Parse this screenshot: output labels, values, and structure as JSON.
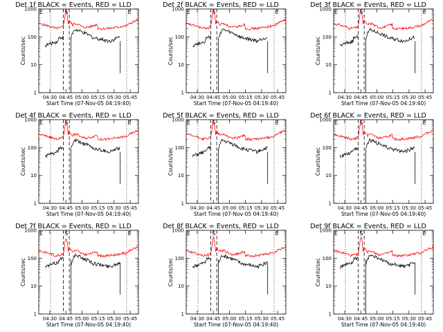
{
  "figure": {
    "description_none": ""
  },
  "chart_data": [
    {
      "type": "line",
      "title": "Det 1f BLACK = Events, RED = LLD",
      "xlabel": "Start Time (07-Nov-05 04:19:40)",
      "ylabel": "Counts/sec",
      "ylim": [
        1,
        1000
      ],
      "yscale": "log",
      "xtick_labels": [
        "04:30",
        "04:45",
        "05:00",
        "05:15",
        "05:30",
        "05:45"
      ],
      "ytick_labels": [
        "1",
        "10",
        "100",
        "1000"
      ],
      "markers": [
        "E",
        "S",
        "E"
      ],
      "series": [
        {
          "name": "BLACK = Events",
          "color": "#000000",
          "values": []
        },
        {
          "name": "RED = LLD",
          "color": "#ff0000",
          "values": []
        }
      ]
    },
    {
      "type": "line",
      "title": "Det 2f BLACK = Events, RED = LLD",
      "xlabel": "Start Time (07-Nov-05 04:19:40)",
      "ylabel": "Counts/sec",
      "ylim": [
        1,
        1000
      ],
      "yscale": "log",
      "xtick_labels": [
        "04:30",
        "04:45",
        "05:00",
        "05:15",
        "05:30",
        "05:45"
      ],
      "ytick_labels": [
        "1",
        "10",
        "100",
        "1000"
      ],
      "markers": [
        "E",
        "S",
        "E"
      ],
      "series": [
        {
          "name": "BLACK = Events",
          "color": "#000000",
          "values": []
        },
        {
          "name": "RED = LLD",
          "color": "#ff0000",
          "values": []
        }
      ]
    },
    {
      "type": "line",
      "title": "Det 3f BLACK = Events, RED = LLD",
      "xlabel": "Start Time (07-Nov-05 04:19:40)",
      "ylabel": "Counts/sec",
      "ylim": [
        1,
        1000
      ],
      "yscale": "log",
      "xtick_labels": [
        "04:30",
        "04:45",
        "05:00",
        "05:15",
        "05:30",
        "05:45"
      ],
      "ytick_labels": [
        "1",
        "10",
        "100",
        "1000"
      ],
      "markers": [
        "E",
        "S",
        "E"
      ],
      "series": [
        {
          "name": "BLACK = Events",
          "color": "#000000",
          "values": []
        },
        {
          "name": "RED = LLD",
          "color": "#ff0000",
          "values": []
        }
      ]
    },
    {
      "type": "line",
      "title": "Det 4f BLACK = Events, RED = LLD",
      "xlabel": "Start Time (07-Nov-05 04:19:40)",
      "ylabel": "Counts/sec",
      "ylim": [
        1,
        1000
      ],
      "yscale": "log",
      "xtick_labels": [
        "04:30",
        "04:45",
        "05:00",
        "05:15",
        "05:30",
        "05:45"
      ],
      "ytick_labels": [
        "1",
        "10",
        "100",
        "1000"
      ],
      "markers": [
        "E",
        "S",
        "E"
      ],
      "series": [
        {
          "name": "BLACK = Events",
          "color": "#000000",
          "values": []
        },
        {
          "name": "RED = LLD",
          "color": "#ff0000",
          "values": []
        }
      ]
    },
    {
      "type": "line",
      "title": "Det 5f BLACK = Events, RED = LLD",
      "xlabel": "Start Time (07-Nov-05 04:19:40)",
      "ylabel": "Counts/sec",
      "ylim": [
        1,
        1000
      ],
      "yscale": "log",
      "xtick_labels": [
        "04:30",
        "04:45",
        "05:00",
        "05:15",
        "05:30",
        "05:45"
      ],
      "ytick_labels": [
        "1",
        "10",
        "100",
        "1000"
      ],
      "markers": [
        "E",
        "S",
        "E"
      ],
      "series": [
        {
          "name": "BLACK = Events",
          "color": "#000000",
          "values": []
        },
        {
          "name": "RED = LLD",
          "color": "#ff0000",
          "values": []
        }
      ]
    },
    {
      "type": "line",
      "title": "Det 6f BLACK = Events, RED = LLD",
      "xlabel": "Start Time (07-Nov-05 04:19:40)",
      "ylabel": "Counts/sec",
      "ylim": [
        1,
        1000
      ],
      "yscale": "log",
      "xtick_labels": [
        "04:30",
        "04:45",
        "05:00",
        "05:15",
        "05:30",
        "05:45"
      ],
      "ytick_labels": [
        "1",
        "10",
        "100",
        "1000"
      ],
      "markers": [
        "E",
        "S",
        "E"
      ],
      "series": [
        {
          "name": "BLACK = Events",
          "color": "#000000",
          "values": []
        },
        {
          "name": "RED = LLD",
          "color": "#ff0000",
          "values": []
        }
      ]
    },
    {
      "type": "line",
      "title": "Det 7f BLACK = Events, RED = LLD",
      "xlabel": "Start Time (07-Nov-05 04:19:40)",
      "ylabel": "Counts/sec",
      "ylim": [
        1,
        1000
      ],
      "yscale": "log",
      "xtick_labels": [
        "04:30",
        "04:45",
        "05:00",
        "05:15",
        "05:30",
        "05:45"
      ],
      "ytick_labels": [
        "1",
        "10",
        "100",
        "1000"
      ],
      "markers": [
        "E",
        "S",
        "E"
      ],
      "series": [
        {
          "name": "BLACK = Events",
          "color": "#000000",
          "values": []
        },
        {
          "name": "RED = LLD",
          "color": "#ff0000",
          "values": []
        }
      ]
    },
    {
      "type": "line",
      "title": "Det 8f BLACK = Events, RED = LLD",
      "xlabel": "Start Time (07-Nov-05 04:19:40)",
      "ylabel": "Counts/sec",
      "ylim": [
        1,
        1000
      ],
      "yscale": "log",
      "xtick_labels": [
        "04:30",
        "04:45",
        "05:00",
        "05:15",
        "05:30",
        "05:45"
      ],
      "ytick_labels": [
        "1",
        "10",
        "100",
        "1000"
      ],
      "markers": [
        "E",
        "S",
        "E"
      ],
      "series": [
        {
          "name": "BLACK = Events",
          "color": "#000000",
          "values": []
        },
        {
          "name": "RED = LLD",
          "color": "#ff0000",
          "values": []
        }
      ]
    },
    {
      "type": "line",
      "title": "Det 9f BLACK = Events, RED = LLD",
      "xlabel": "Start Time (07-Nov-05 04:19:40)",
      "ylabel": "Counts/sec",
      "ylim": [
        1,
        1000
      ],
      "yscale": "log",
      "xtick_labels": [
        "04:30",
        "04:45",
        "05:00",
        "05:15",
        "05:30",
        "05:45"
      ],
      "ytick_labels": [
        "1",
        "10",
        "100",
        "1000"
      ],
      "markers": [
        "E",
        "S",
        "E"
      ],
      "series": [
        {
          "name": "BLACK = Events",
          "color": "#000000",
          "values": []
        },
        {
          "name": "RED = LLD",
          "color": "#ff0000",
          "values": []
        }
      ]
    }
  ]
}
